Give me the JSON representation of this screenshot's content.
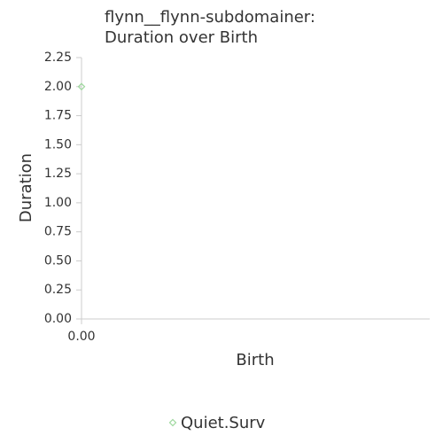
{
  "chart_data": {
    "type": "scatter",
    "title": [
      "flynn__flynn-subdomainer:",
      "Duration over Birth"
    ],
    "x_label": "Birth",
    "y_label": "Duration",
    "xlim": [
      0,
      1
    ],
    "xticks": [
      {
        "value": 0,
        "label": "0.00"
      }
    ],
    "ylim": [
      0,
      2.25
    ],
    "yticks": [
      {
        "value": 0,
        "label": "0.00"
      },
      {
        "value": 0.25,
        "label": "0.25"
      },
      {
        "value": 0.5,
        "label": "0.50"
      },
      {
        "value": 0.75,
        "label": "0.75"
      },
      {
        "value": 1,
        "label": "1.00"
      },
      {
        "value": 1.25,
        "label": "1.25"
      },
      {
        "value": 1.5,
        "label": "1.50"
      },
      {
        "value": 1.75,
        "label": "1.75"
      },
      {
        "value": 2,
        "label": "2.00"
      },
      {
        "value": 2.25,
        "label": "2.25"
      }
    ],
    "series": [
      {
        "name": "Quiet.Surv",
        "color": "#9ed89e",
        "x": [
          0
        ],
        "values": [
          2
        ]
      }
    ],
    "legend": "bottom"
  }
}
